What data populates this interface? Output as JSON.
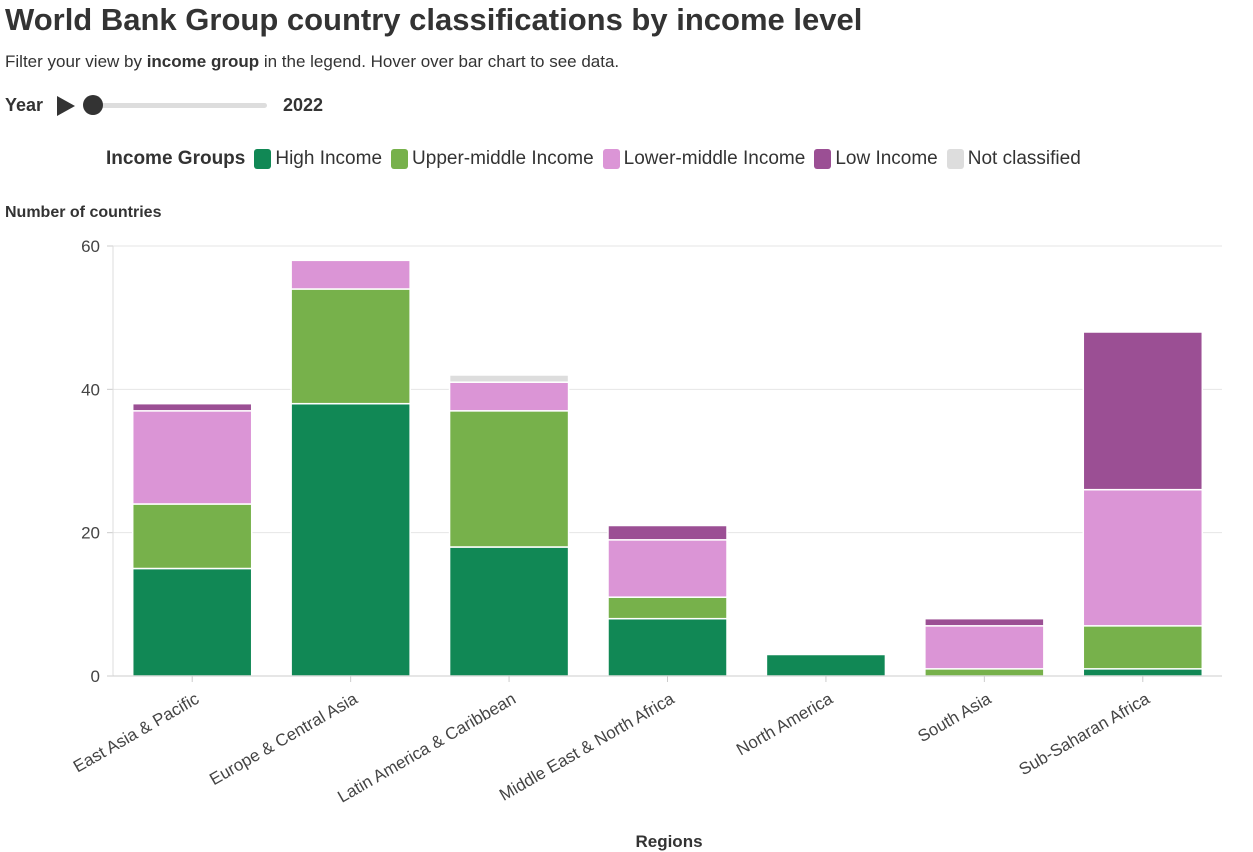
{
  "header": {
    "title": "World Bank Group country classifications by income level",
    "subtitle_before": "Filter your view by ",
    "subtitle_bold": "income group",
    "subtitle_after": " in the legend. Hover over bar chart to see data."
  },
  "year_control": {
    "label": "Year",
    "value": "2022"
  },
  "legend": {
    "title": "Income Groups",
    "items": [
      {
        "label": "High Income",
        "color": "#118855"
      },
      {
        "label": "Upper-middle Income",
        "color": "#77b14b"
      },
      {
        "label": "Lower-middle Income",
        "color": "#db95d6"
      },
      {
        "label": "Low Income",
        "color": "#9b4f94"
      },
      {
        "label": "Not classified",
        "color": "#dddddd"
      }
    ]
  },
  "chart_data": {
    "type": "bar",
    "stacked": true,
    "ylabel": "Number of countries",
    "xlabel": "Regions",
    "ylim": [
      0,
      60
    ],
    "yticks": [
      0,
      20,
      40,
      60
    ],
    "categories": [
      "East Asia & Pacific",
      "Europe & Central Asia",
      "Latin America & Caribbean",
      "Middle East & North Africa",
      "North America",
      "South Asia",
      "Sub-Saharan Africa"
    ],
    "series": [
      {
        "name": "High Income",
        "color": "#118855",
        "values": [
          15,
          38,
          18,
          8,
          3,
          0,
          1
        ]
      },
      {
        "name": "Upper-middle Income",
        "color": "#77b14b",
        "values": [
          9,
          16,
          19,
          3,
          0,
          1,
          6
        ]
      },
      {
        "name": "Lower-middle Income",
        "color": "#db95d6",
        "values": [
          13,
          4,
          4,
          8,
          0,
          6,
          19
        ]
      },
      {
        "name": "Low Income",
        "color": "#9b4f94",
        "values": [
          1,
          0,
          0,
          2,
          0,
          1,
          22
        ]
      },
      {
        "name": "Not classified",
        "color": "#dddddd",
        "values": [
          0,
          0,
          1,
          0,
          0,
          0,
          0
        ]
      }
    ],
    "grid": true
  }
}
